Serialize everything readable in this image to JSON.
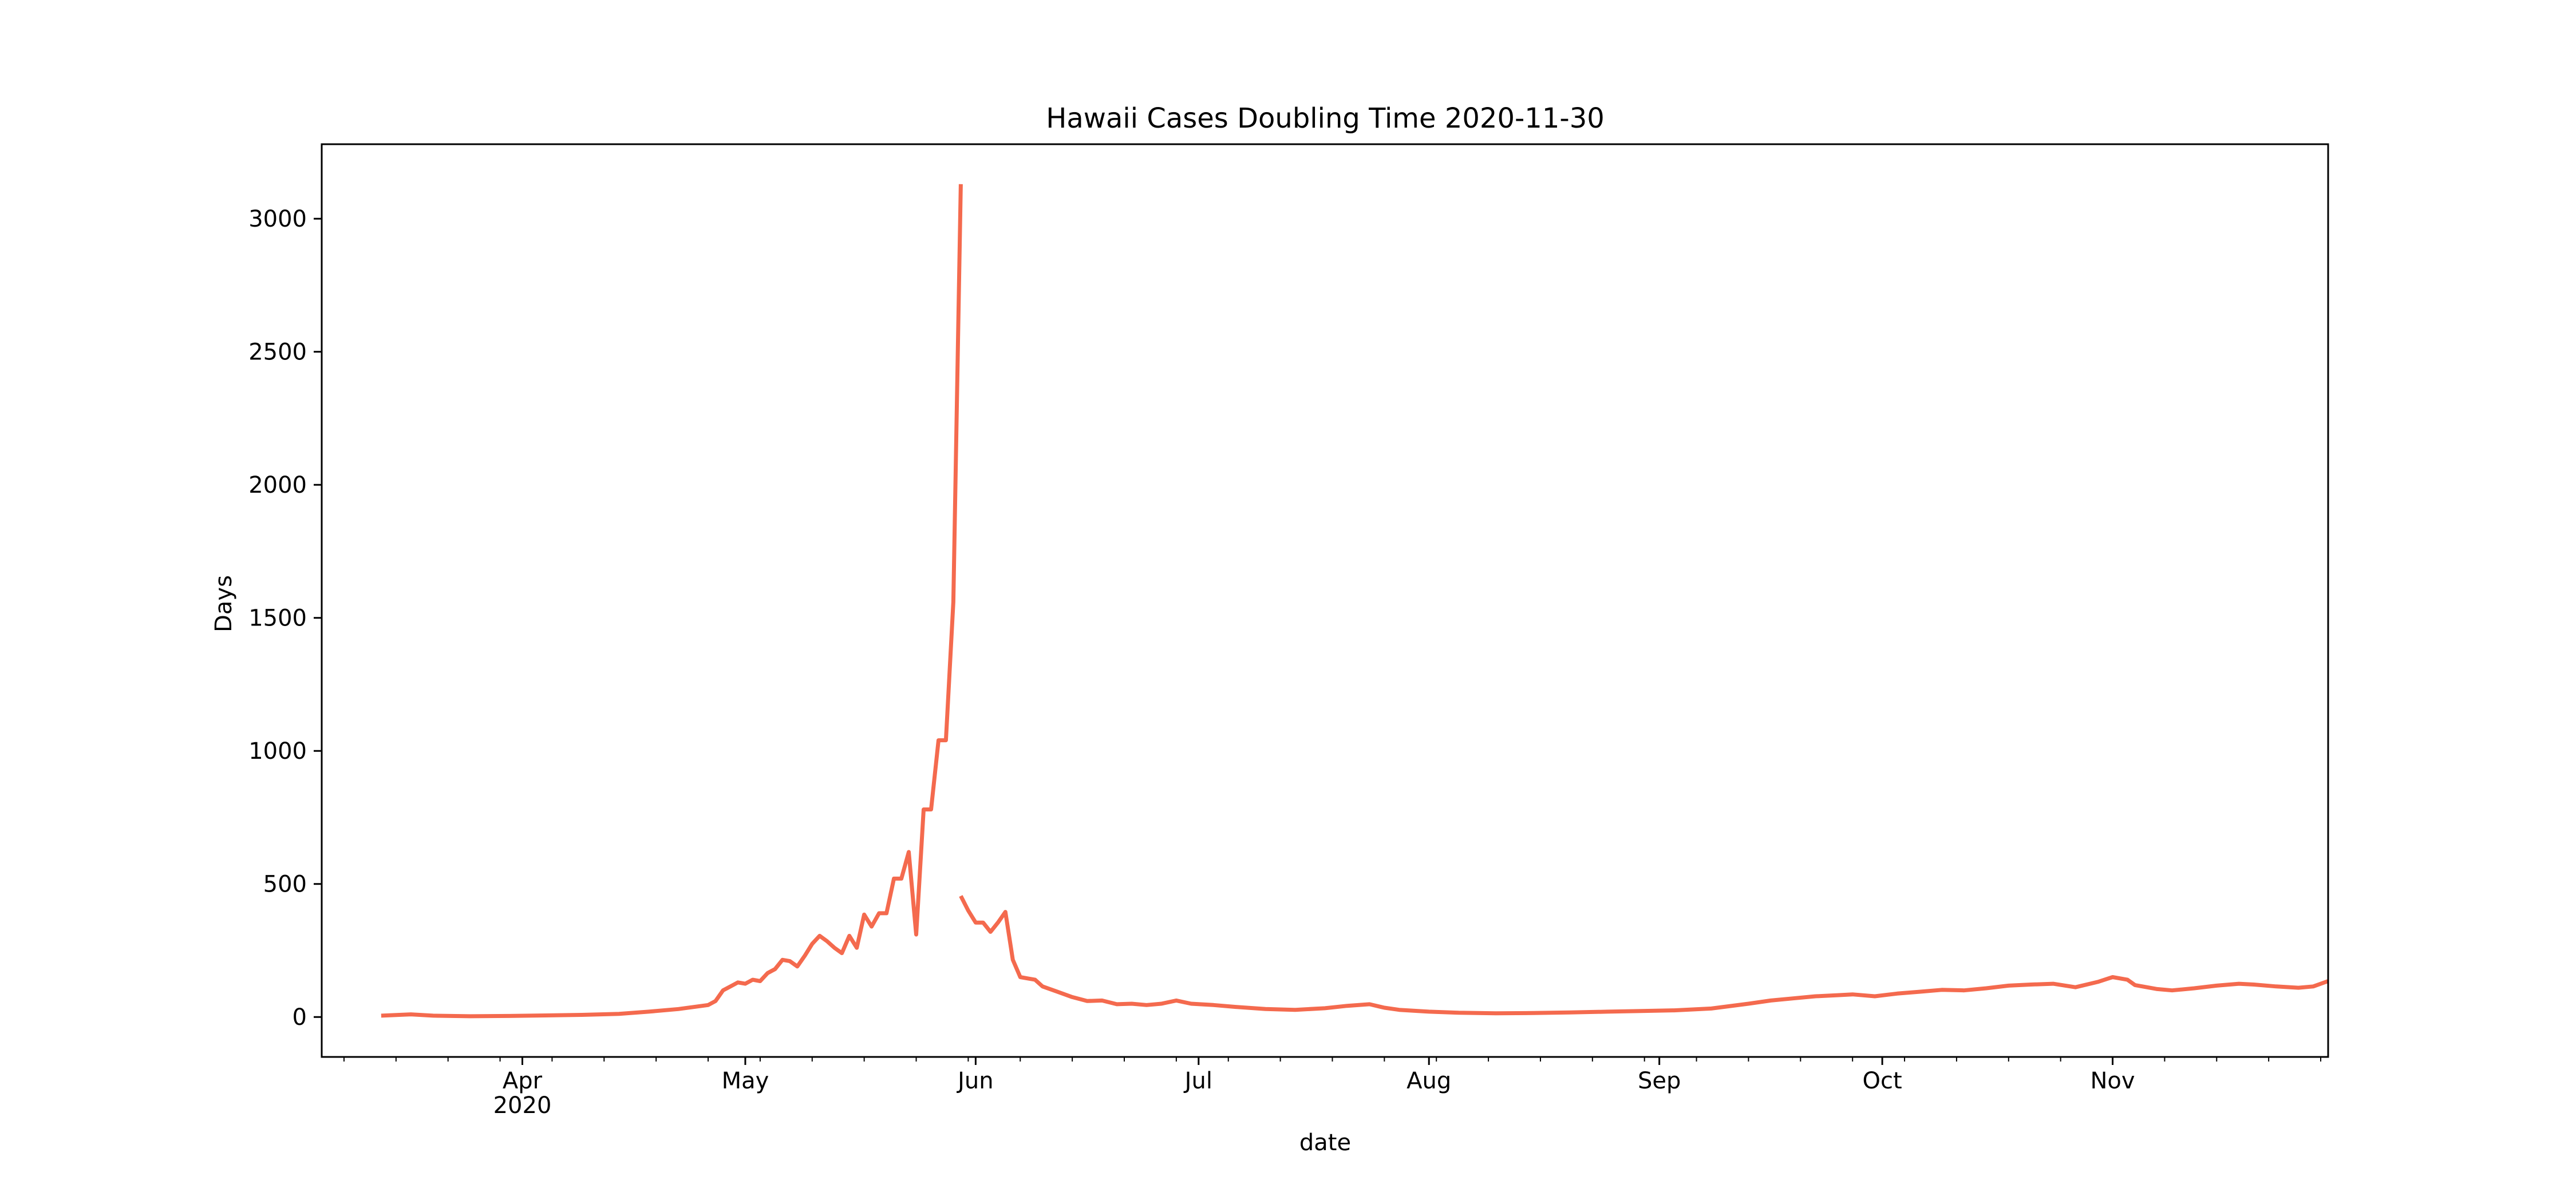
{
  "chart_data": {
    "type": "line",
    "title": "Hawaii Cases Doubling Time 2020-11-30",
    "xlabel": "date",
    "ylabel": "Days",
    "xlim": [
      "2020-03-05",
      "2020-11-30"
    ],
    "ylim": [
      -150,
      3280
    ],
    "y_ticks": [
      0,
      500,
      1000,
      1500,
      2000,
      2500,
      3000
    ],
    "x_month_ticks": [
      {
        "date": "2020-04-01",
        "label": "Apr",
        "sublabel": "2020"
      },
      {
        "date": "2020-05-01",
        "label": "May"
      },
      {
        "date": "2020-06-01",
        "label": "Jun"
      },
      {
        "date": "2020-07-01",
        "label": "Jul"
      },
      {
        "date": "2020-08-01",
        "label": "Aug"
      },
      {
        "date": "2020-09-01",
        "label": "Sep"
      },
      {
        "date": "2020-10-01",
        "label": "Oct"
      },
      {
        "date": "2020-11-01",
        "label": "Nov"
      }
    ],
    "x_minor_ticks": [
      "2020-03-08",
      "2020-03-15",
      "2020-03-22",
      "2020-03-29",
      "2020-04-05",
      "2020-04-12",
      "2020-04-19",
      "2020-04-26",
      "2020-05-03",
      "2020-05-10",
      "2020-05-17",
      "2020-05-24",
      "2020-05-31",
      "2020-06-07",
      "2020-06-14",
      "2020-06-21",
      "2020-06-28",
      "2020-07-05",
      "2020-07-12",
      "2020-07-19",
      "2020-07-26",
      "2020-08-02",
      "2020-08-09",
      "2020-08-16",
      "2020-08-23",
      "2020-08-30",
      "2020-09-06",
      "2020-09-13",
      "2020-09-20",
      "2020-09-27",
      "2020-10-04",
      "2020-10-11",
      "2020-10-18",
      "2020-10-25",
      "2020-11-01",
      "2020-11-08",
      "2020-11-15",
      "2020-11-22",
      "2020-11-29"
    ],
    "grid": false,
    "line_color": "#f46a4e",
    "series": [
      {
        "segments": [
          [
            [
              "2020-03-13",
              5
            ],
            [
              "2020-03-17",
              10
            ],
            [
              "2020-03-20",
              5
            ],
            [
              "2020-03-25",
              3
            ],
            [
              "2020-03-30",
              4
            ],
            [
              "2020-04-04",
              6
            ],
            [
              "2020-04-09",
              8
            ],
            [
              "2020-04-14",
              12
            ],
            [
              "2020-04-18",
              20
            ],
            [
              "2020-04-22",
              30
            ],
            [
              "2020-04-26",
              45
            ],
            [
              "2020-04-27",
              60
            ],
            [
              "2020-04-28",
              100
            ],
            [
              "2020-04-29",
              115
            ],
            [
              "2020-04-30",
              130
            ],
            [
              "2020-05-01",
              125
            ],
            [
              "2020-05-02",
              140
            ],
            [
              "2020-05-03",
              135
            ],
            [
              "2020-05-04",
              165
            ],
            [
              "2020-05-05",
              180
            ],
            [
              "2020-05-06",
              215
            ],
            [
              "2020-05-07",
              210
            ],
            [
              "2020-05-08",
              190
            ],
            [
              "2020-05-09",
              230
            ],
            [
              "2020-05-10",
              275
            ],
            [
              "2020-05-11",
              305
            ],
            [
              "2020-05-12",
              285
            ],
            [
              "2020-05-13",
              260
            ],
            [
              "2020-05-14",
              240
            ],
            [
              "2020-05-15",
              305
            ],
            [
              "2020-05-16",
              260
            ],
            [
              "2020-05-17",
              385
            ],
            [
              "2020-05-18",
              340
            ],
            [
              "2020-05-19",
              390
            ],
            [
              "2020-05-20",
              390
            ],
            [
              "2020-05-21",
              520
            ],
            [
              "2020-05-22",
              520
            ],
            [
              "2020-05-23",
              620
            ],
            [
              "2020-05-24",
              310
            ],
            [
              "2020-05-25",
              780
            ],
            [
              "2020-05-26",
              780
            ],
            [
              "2020-05-27",
              1040
            ],
            [
              "2020-05-28",
              1040
            ],
            [
              "2020-05-29",
              1560
            ],
            [
              "2020-05-30",
              3130
            ]
          ],
          [
            [
              "2020-05-30",
              455
            ],
            [
              "2020-05-31",
              400
            ],
            [
              "2020-06-01",
              355
            ],
            [
              "2020-06-02",
              355
            ],
            [
              "2020-06-03",
              320
            ],
            [
              "2020-06-04",
              355
            ],
            [
              "2020-06-05",
              395
            ],
            [
              "2020-06-06",
              215
            ],
            [
              "2020-06-07",
              150
            ],
            [
              "2020-06-08",
              145
            ],
            [
              "2020-06-09",
              140
            ],
            [
              "2020-06-10",
              115
            ],
            [
              "2020-06-12",
              95
            ],
            [
              "2020-06-14",
              75
            ],
            [
              "2020-06-16",
              60
            ],
            [
              "2020-06-18",
              62
            ],
            [
              "2020-06-20",
              48
            ],
            [
              "2020-06-22",
              50
            ],
            [
              "2020-06-24",
              45
            ],
            [
              "2020-06-26",
              50
            ],
            [
              "2020-06-28",
              62
            ],
            [
              "2020-06-30",
              50
            ],
            [
              "2020-07-03",
              45
            ],
            [
              "2020-07-06",
              38
            ],
            [
              "2020-07-10",
              30
            ],
            [
              "2020-07-14",
              27
            ],
            [
              "2020-07-18",
              33
            ],
            [
              "2020-07-21",
              42
            ],
            [
              "2020-07-24",
              48
            ],
            [
              "2020-07-26",
              35
            ],
            [
              "2020-07-28",
              27
            ],
            [
              "2020-08-01",
              20
            ],
            [
              "2020-08-05",
              16
            ],
            [
              "2020-08-10",
              14
            ],
            [
              "2020-08-15",
              15
            ],
            [
              "2020-08-20",
              17
            ],
            [
              "2020-08-25",
              20
            ],
            [
              "2020-08-30",
              23
            ],
            [
              "2020-09-03",
              25
            ],
            [
              "2020-09-08",
              32
            ],
            [
              "2020-09-13",
              50
            ],
            [
              "2020-09-16",
              62
            ],
            [
              "2020-09-19",
              70
            ],
            [
              "2020-09-22",
              78
            ],
            [
              "2020-09-25",
              82
            ],
            [
              "2020-09-27",
              85
            ],
            [
              "2020-09-30",
              78
            ],
            [
              "2020-10-03",
              88
            ],
            [
              "2020-10-06",
              95
            ],
            [
              "2020-10-09",
              102
            ],
            [
              "2020-10-12",
              100
            ],
            [
              "2020-10-15",
              108
            ],
            [
              "2020-10-18",
              118
            ],
            [
              "2020-10-21",
              122
            ],
            [
              "2020-10-24",
              125
            ],
            [
              "2020-10-27",
              112
            ],
            [
              "2020-10-30",
              132
            ],
            [
              "2020-11-01",
              150
            ],
            [
              "2020-11-03",
              140
            ],
            [
              "2020-11-04",
              120
            ],
            [
              "2020-11-07",
              105
            ],
            [
              "2020-11-09",
              100
            ],
            [
              "2020-11-12",
              108
            ],
            [
              "2020-11-15",
              118
            ],
            [
              "2020-11-18",
              125
            ],
            [
              "2020-11-20",
              122
            ],
            [
              "2020-11-23",
              115
            ],
            [
              "2020-11-26",
              110
            ],
            [
              "2020-11-28",
              115
            ],
            [
              "2020-11-30",
              135
            ]
          ]
        ]
      }
    ]
  }
}
